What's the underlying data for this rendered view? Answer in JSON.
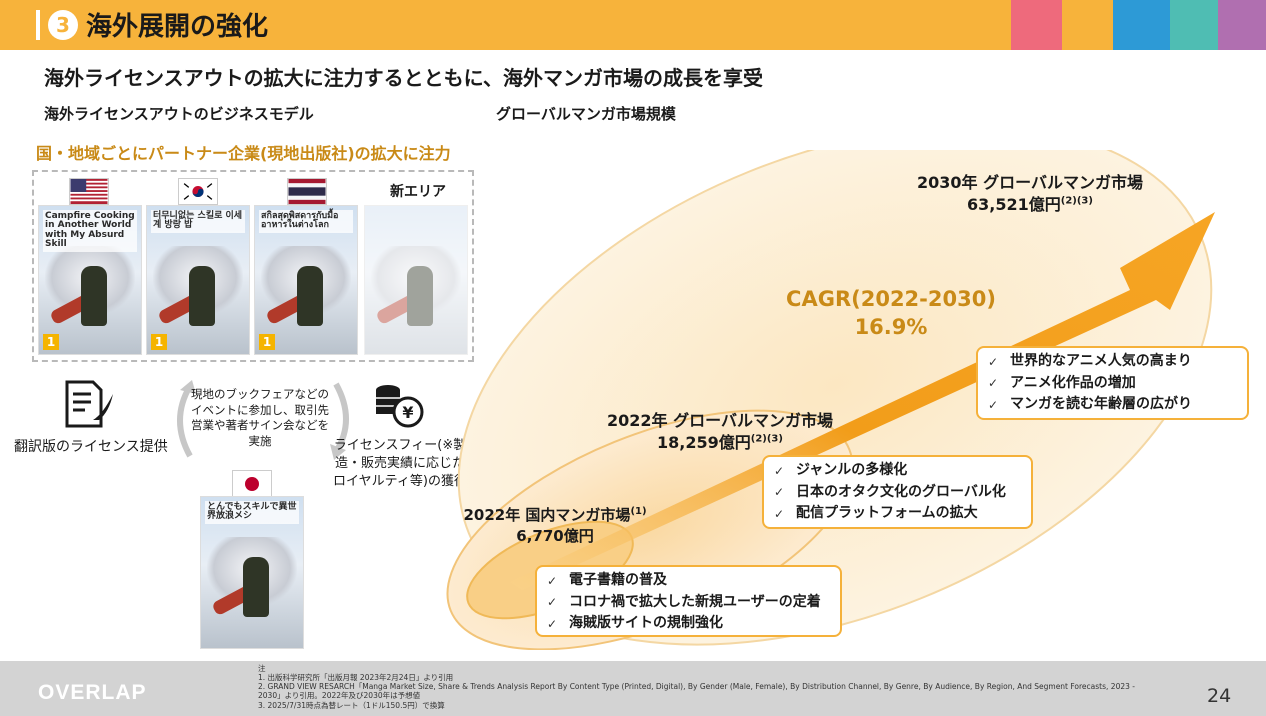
{
  "header": {
    "number": "3",
    "title": "海外展開の強化",
    "swatches": [
      "#ee6a7c",
      "#f7b33b",
      "#2d9ad6",
      "#4fbdb3",
      "#b06fb0"
    ]
  },
  "subtitle": "海外ライセンスアウトの拡大に注力するとともに、海外マンガ市場の成長を享受",
  "left": {
    "heading": "海外ライセンスアウトのビジネスモデル",
    "emphasis": "国・地域ごとにパートナー企業(現地出版社)の拡大に注力",
    "new_area": "新エリア",
    "covers": [
      {
        "title": "Campfire Cooking in Another World with My Absurd Skill",
        "vol": "1"
      },
      {
        "title": "터무니없는 스킬로 이세계 방랑 밥",
        "vol": "1"
      },
      {
        "title": "สกิลสุดพิสดารกับมื้ออาหารในต่างโลก",
        "vol": "1"
      },
      {
        "title": "",
        "vol": ""
      }
    ],
    "jp_cover_title": "とんでもスキルで異世界放浪メシ",
    "license_label": "翻訳版のライセンス提供",
    "activity_text": "現地のブックフェアなどのイベントに参加し、取引先営業や著者サイン会などを実施",
    "fee_label": "ライセンスフィー(※製造・販売実績に応じたロイヤルティ等)の獲得"
  },
  "right": {
    "heading": "グローバルマンガ市場規模",
    "market_2030_title": "2030年 グローバルマンガ市場",
    "market_2030_value": "63,521億円",
    "market_2030_note": "(2)(3)",
    "cagr_label": "CAGR(2022-2030)",
    "cagr_value": "16.9%",
    "global_2022_title": "2022年 グローバルマンガ市場",
    "global_2022_value": "18,259億円",
    "global_2022_note": "(2)(3)",
    "domestic_2022_title": "2022年 国内マンガ市場",
    "domestic_2022_note": "(1)",
    "domestic_2022_value": "6,770億円",
    "bullets_top": [
      "世界的なアニメ人気の高まり",
      "アニメ化作品の増加",
      "マンガを読む年齢層の広がり"
    ],
    "bullets_mid": [
      "ジャンルの多様化",
      "日本のオタク文化のグローバル化",
      "配信プラットフォームの拡大"
    ],
    "bullets_low": [
      "電子書籍の普及",
      "コロナ禍で拡大した新規ユーザーの定着",
      "海賊版サイトの規制強化"
    ],
    "check": "✓"
  },
  "chart_data": {
    "type": "bar",
    "categories": [
      "2022年 国内マンガ市場",
      "2022年 グローバルマンガ市場",
      "2030年 グローバルマンガ市場"
    ],
    "values": [
      6770,
      18259,
      63521
    ],
    "ylabel": "億円",
    "title": "グローバルマンガ市場規模",
    "cagr": "16.9%"
  },
  "footer": {
    "logo": "OVERLAP",
    "notes_title": "注",
    "note1": "1.  出版科学研究所「出版月報 2023年2月24日」より引用",
    "note2": "2.  GRAND VIEW RESARCH「Manga Market Size, Share & Trends Analysis Report By Content Type (Printed, Digital), By Gender (Male, Female), By Distribution Channel, By Genre, By Audience, By Region, And Segment Forecasts, 2023 - 2030」より引用。2022年及び2030年は予想値",
    "note3": "3.  2025/7/31時点為替レート（1ドル150.5円）で換算",
    "page": "24"
  }
}
